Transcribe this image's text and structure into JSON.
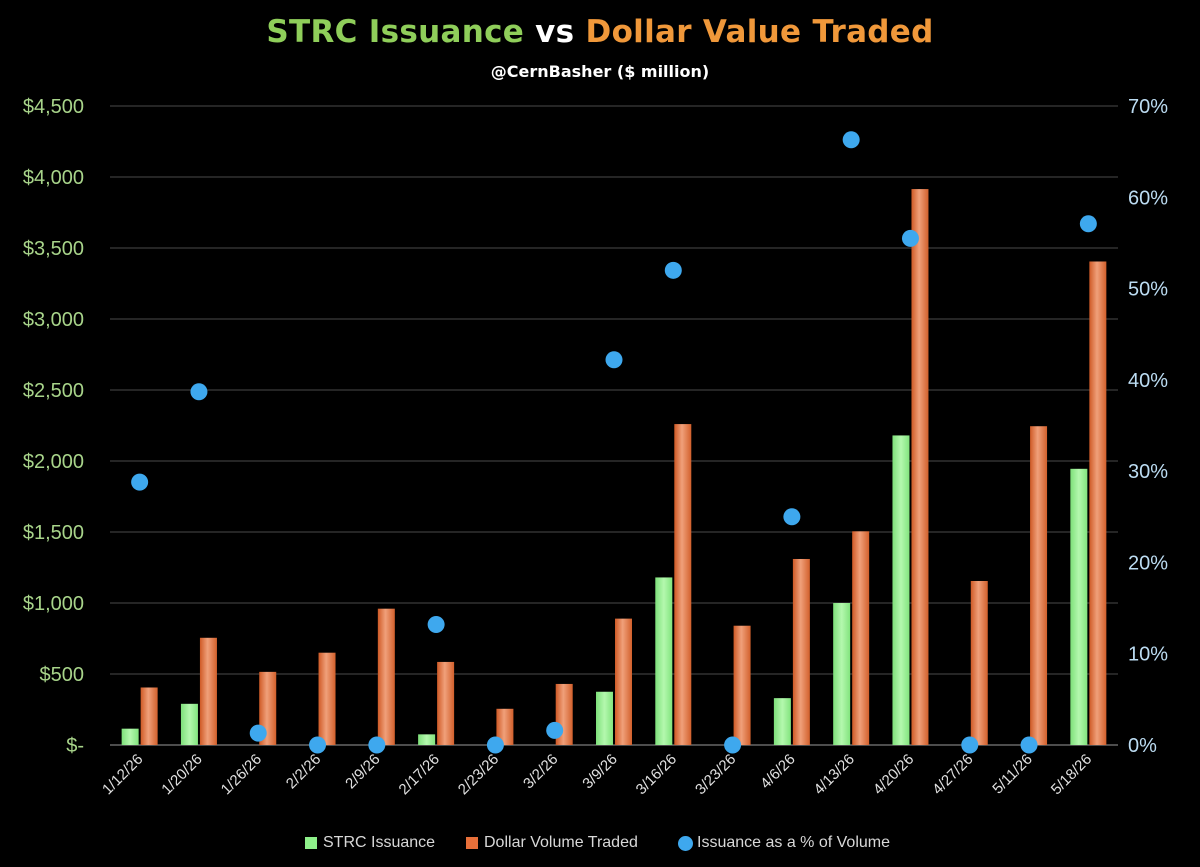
{
  "title": {
    "part1": "STRC Issuance",
    "part2": " vs ",
    "part3": "Dollar Value Traded"
  },
  "subtitle": "@CernBasher ($ million)",
  "colors": {
    "issuance": "#8ef08a",
    "volume": "#e8703a",
    "percent": "#3ea8ee",
    "left_axis_text": "#a8d48a",
    "right_axis_text": "#bcdcf2",
    "title_green": "#8fce5a",
    "title_orange": "#f0983a",
    "grid": "#4a4a4a"
  },
  "chart_data": {
    "type": "bar",
    "categories": [
      "1/12/26",
      "1/20/26",
      "1/26/26",
      "2/2/26",
      "2/9/26",
      "2/17/26",
      "2/23/26",
      "3/2/26",
      "3/9/26",
      "3/16/26",
      "3/23/26",
      "4/6/26",
      "4/13/26",
      "4/20/26",
      "4/27/26",
      "5/11/26",
      "5/18/26"
    ],
    "series": [
      {
        "name": "STRC Issuance",
        "axis": "left",
        "kind": "bar",
        "values": [
          115,
          290,
          0,
          0,
          0,
          75,
          0,
          0,
          375,
          1180,
          0,
          330,
          1000,
          2180,
          0,
          0,
          1945
        ]
      },
      {
        "name": "Dollar Volume Traded",
        "axis": "left",
        "kind": "bar",
        "values": [
          405,
          755,
          515,
          650,
          960,
          585,
          255,
          430,
          890,
          2260,
          840,
          1310,
          1505,
          3915,
          1155,
          2245,
          3405
        ]
      },
      {
        "name": "Issuance as a % of Volume",
        "axis": "right",
        "kind": "scatter",
        "values": [
          28.8,
          38.7,
          1.3,
          0,
          0,
          13.2,
          0,
          1.6,
          42.2,
          52.0,
          0,
          25.0,
          66.3,
          55.5,
          0,
          0,
          57.1
        ]
      }
    ],
    "y_left": {
      "min": 0,
      "max": 4500,
      "ticks": [
        0,
        500,
        1000,
        1500,
        2000,
        2500,
        3000,
        3500,
        4000,
        4500
      ],
      "tick_labels": [
        "$-",
        "$500",
        "$1,000",
        "$1,500",
        "$2,000",
        "$2,500",
        "$3,000",
        "$3,500",
        "$4,000",
        "$4,500"
      ]
    },
    "y_right": {
      "min": 0,
      "max": 70,
      "ticks": [
        0,
        10,
        20,
        30,
        40,
        50,
        60,
        70
      ],
      "tick_labels": [
        "0%",
        "10%",
        "20%",
        "30%",
        "40%",
        "50%",
        "60%",
        "70%"
      ]
    },
    "grid": true,
    "legend": "bottom"
  }
}
